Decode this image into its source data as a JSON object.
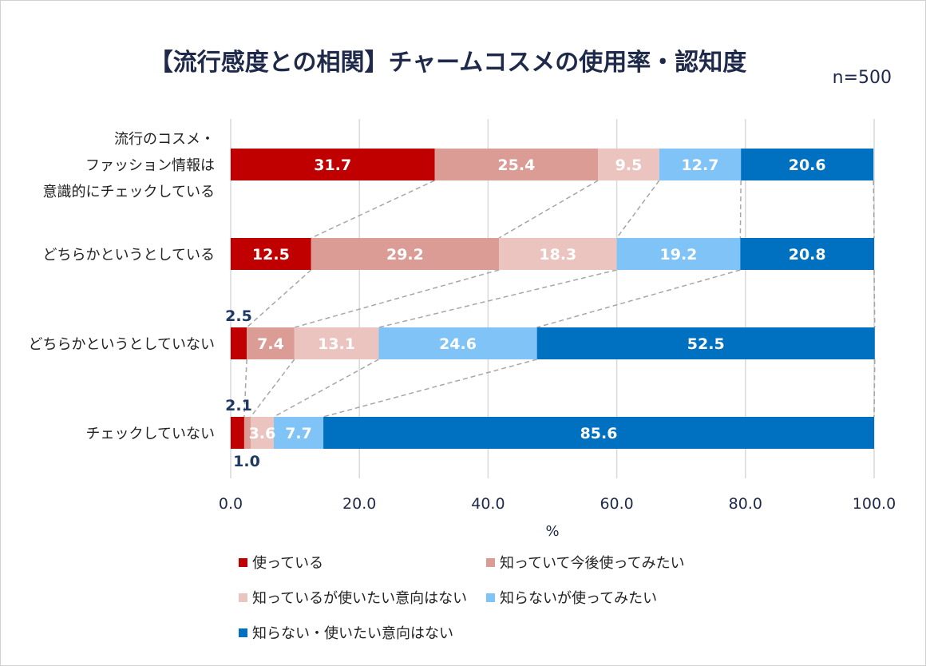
{
  "title": "【流行感度との相関】チャームコスメの使用率・認知度",
  "sample_size": "n=500",
  "chart_data": {
    "type": "bar",
    "orientation": "horizontal",
    "stacked": true,
    "categories": [
      [
        "流行のコスメ・",
        "ファッション情報は",
        "意識的にチェックしている"
      ],
      [
        "どちらかというとしている"
      ],
      [
        "どちらかというとしていない"
      ],
      [
        "チェックしていない"
      ]
    ],
    "series": [
      {
        "name": "使っている",
        "color": "#c00000",
        "values": [
          31.7,
          12.5,
          2.5,
          2.1
        ]
      },
      {
        "name": "知っていて今後使ってみたい",
        "color": "#da9c95",
        "values": [
          25.4,
          29.2,
          7.4,
          1.0
        ]
      },
      {
        "name": "知っているが使いたい意向はない",
        "color": "#ebc4bf",
        "values": [
          9.5,
          18.3,
          13.1,
          3.6
        ]
      },
      {
        "name": "知らないが使ってみたい",
        "color": "#7fc3f7",
        "values": [
          12.7,
          19.2,
          24.6,
          7.7
        ]
      },
      {
        "name": "知らない・使いたい意向はない",
        "color": "#0070c0",
        "values": [
          20.6,
          20.8,
          52.5,
          85.6
        ]
      }
    ],
    "xlim": [
      0,
      100
    ],
    "xticks": [
      "0.0",
      "20.0",
      "40.0",
      "60.0",
      "80.0",
      "100.0"
    ],
    "xlabel": "%",
    "grid": true,
    "connector_lines": true,
    "legend_position": "bottom"
  }
}
